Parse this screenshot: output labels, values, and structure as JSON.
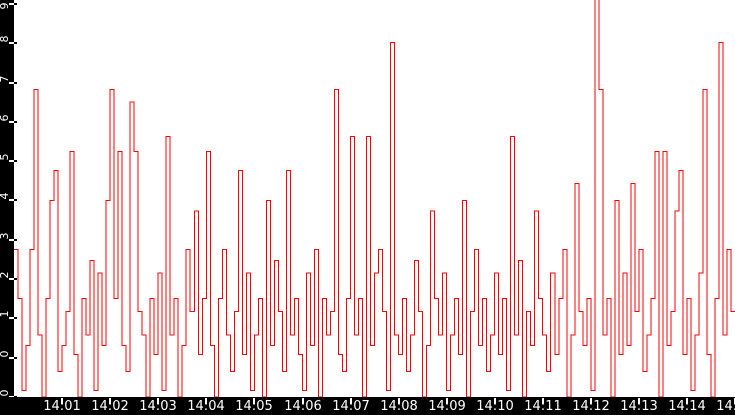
{
  "chart_data": {
    "type": "line",
    "subtype": "step",
    "title": "",
    "xlabel": "",
    "ylabel": "",
    "grid": false,
    "legend": false,
    "background_color": "#ffffff",
    "line_color": "#ff0000",
    "axis_bar_color": "#000000",
    "tick_label_color": "#ffffff",
    "x_tick_labels": [
      "14:01",
      "14:02",
      "14:03",
      "14:04",
      "14:05",
      "14:06",
      "14:07",
      "14:08",
      "14:09",
      "14:10",
      "14:11",
      "14:12",
      "14:13",
      "14:14"
    ],
    "x_tick_label_partial_right": "14:15",
    "y_tick_labels_bottom_to_top": [
      "0",
      "0",
      "1",
      "2",
      "3",
      "4",
      "5",
      "6",
      "7",
      "8",
      "9"
    ],
    "ylim": [
      0,
      9.2
    ],
    "x_start_time": "14:00:00",
    "x_end_time": "14:15:00",
    "sample_interval_seconds": 5,
    "values": [
      3.45,
      2.3,
      0.15,
      1.2,
      3.45,
      7.2,
      1.45,
      0,
      2.3,
      4.6,
      5.3,
      0.6,
      1.2,
      2.0,
      5.75,
      1.0,
      0,
      2.3,
      1.45,
      3.2,
      0.15,
      2.9,
      1.2,
      4.6,
      7.2,
      2.3,
      5.75,
      1.2,
      0.6,
      6.9,
      5.75,
      2.0,
      1.45,
      0,
      2.3,
      1.0,
      2.9,
      0.15,
      6.1,
      1.45,
      2.3,
      0,
      1.2,
      3.45,
      2.0,
      4.35,
      1.0,
      2.3,
      5.75,
      1.2,
      0,
      2.3,
      3.45,
      1.45,
      0.6,
      2.0,
      5.3,
      1.0,
      2.9,
      0.15,
      1.45,
      2.3,
      0,
      4.6,
      1.2,
      3.2,
      2.0,
      0.6,
      5.3,
      1.45,
      2.3,
      1.0,
      0.15,
      2.9,
      1.2,
      3.45,
      0,
      2.3,
      1.45,
      2.0,
      7.2,
      1.0,
      0.6,
      2.3,
      6.1,
      1.45,
      2.3,
      0,
      6.1,
      1.2,
      2.9,
      3.45,
      2.0,
      0.15,
      8.3,
      1.45,
      1.0,
      2.3,
      0.6,
      1.45,
      3.2,
      2.0,
      0,
      1.2,
      4.35,
      2.3,
      1.45,
      2.9,
      0.15,
      1.45,
      2.3,
      1.0,
      4.6,
      0,
      2.0,
      3.45,
      1.2,
      2.3,
      0.6,
      1.45,
      2.9,
      1.0,
      2.3,
      0.15,
      6.1,
      1.45,
      3.2,
      0,
      2.0,
      1.2,
      4.35,
      2.3,
      1.45,
      0.6,
      2.9,
      1.0,
      2.3,
      3.45,
      0,
      1.45,
      5.0,
      2.0,
      1.2,
      2.3,
      0.15,
      9.3,
      7.2,
      1.45,
      2.3,
      0,
      4.6,
      1.0,
      2.9,
      1.2,
      5.0,
      2.0,
      3.45,
      0.6,
      1.45,
      2.3,
      5.75,
      0,
      5.75,
      1.2,
      2.0,
      4.35,
      5.3,
      1.0,
      2.3,
      0.15,
      1.45,
      2.9,
      7.2,
      1.0,
      0,
      2.3,
      8.3,
      1.45,
      3.45,
      2.0
    ]
  }
}
